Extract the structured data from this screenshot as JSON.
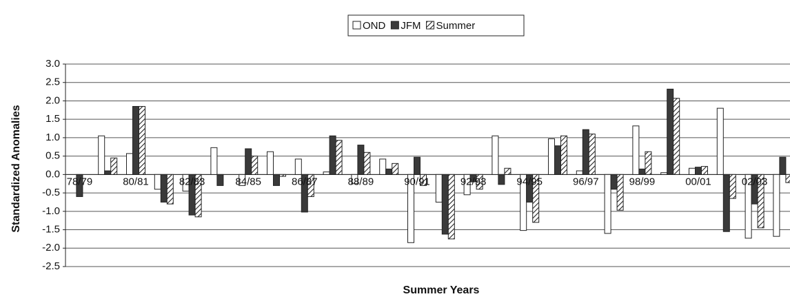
{
  "chart_data": {
    "type": "bar",
    "x_label": "Summer Years",
    "y_label": "Standardized Anomalies",
    "categories": [
      "78/79",
      null,
      "80/81",
      null,
      "82/83",
      null,
      "84/85",
      null,
      "86/87",
      null,
      "88/89",
      null,
      "90/91",
      null,
      "92/93",
      null,
      "94/95",
      null,
      "96/97",
      null,
      "98/99",
      null,
      "00/01",
      null,
      "02/03",
      null
    ],
    "series": [
      {
        "name": "OND",
        "color": "#ffffff",
        "hatch": false,
        "values": [
          0,
          1.05,
          0.57,
          -0.4,
          -0.45,
          0.73,
          -0.3,
          0.62,
          0.42,
          0.07,
          -0.25,
          0.42,
          -1.85,
          -0.75,
          -0.55,
          1.05,
          -1.52,
          0.97,
          0.1,
          -1.6,
          1.32,
          0.05,
          0.17,
          1.8,
          -1.73,
          -1.68
        ]
      },
      {
        "name": "JFM",
        "color": "#3a3a3a",
        "hatch": false,
        "values": [
          -0.6,
          0.1,
          1.85,
          -0.75,
          -1.1,
          -0.3,
          0.7,
          -0.3,
          -1.02,
          1.05,
          0.8,
          0.15,
          0.47,
          -1.62,
          -0.2,
          -0.27,
          -0.75,
          0.78,
          1.22,
          -0.4,
          0.15,
          2.32,
          0.2,
          -1.55,
          -0.8,
          0.47
        ]
      },
      {
        "name": "Summer",
        "color": "#ffffff",
        "hatch": true,
        "values": [
          0,
          0.45,
          1.85,
          -0.8,
          -1.15,
          0,
          0.5,
          -0.05,
          -0.6,
          0.93,
          0.6,
          0.3,
          -0.3,
          -1.75,
          -0.4,
          0.17,
          -1.3,
          1.05,
          1.1,
          -0.97,
          0.62,
          2.07,
          0.22,
          -0.65,
          -1.45,
          -0.22
        ]
      }
    ],
    "ylim": [
      -2.5,
      3
    ],
    "yticks": [
      {
        "value": 3,
        "label": "3.0"
      },
      {
        "value": 2.5,
        "label": "2.5"
      },
      {
        "value": 2,
        "label": "2.0"
      },
      {
        "value": 1.5,
        "label": "1.5"
      },
      {
        "value": 1,
        "label": "1.0"
      },
      {
        "value": 0.5,
        "label": "0.5"
      },
      {
        "value": 0,
        "label": "0.0"
      },
      {
        "value": -0.5,
        "label": "-0.5"
      },
      {
        "value": -1,
        "label": "-1.0"
      },
      {
        "value": -1.5,
        "label": "-1.5"
      },
      {
        "value": -2,
        "label": "-2.0"
      },
      {
        "value": -2.5,
        "label": "-2.5"
      }
    ],
    "grid": true,
    "legend": "top"
  }
}
